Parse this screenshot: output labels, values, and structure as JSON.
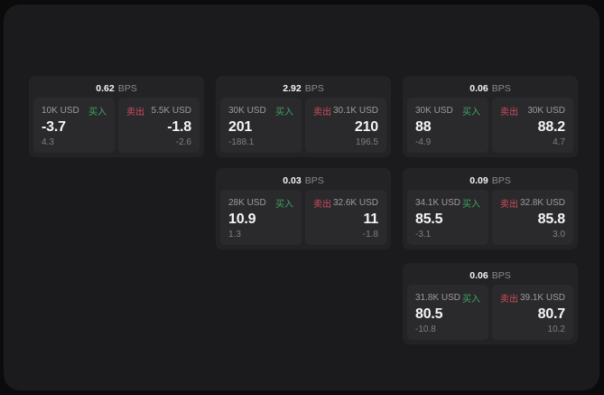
{
  "colors": {
    "page_background": "#0b0b0b",
    "surface_background": "#1b1b1d",
    "card_background": "#232325",
    "panel_background": "#2a2a2c",
    "buy_green": "#3fa463",
    "sell_red": "#d04a5e",
    "value_text": "#f5f5f5",
    "muted_text": "#8a8a8a"
  },
  "labels": {
    "buy": "买入",
    "sell": "卖出",
    "bps_unit": "BPS"
  },
  "cards": [
    {
      "bps": "0.62",
      "bps_unit": "BPS",
      "buy": {
        "amount": "10K USD",
        "label": "买入",
        "price": "-3.7",
        "sub": "4.3"
      },
      "sell": {
        "label": "卖出",
        "amount": "5.5K USD",
        "price": "-1.8",
        "sub": "-2.6"
      }
    },
    {
      "bps": "2.92",
      "bps_unit": "BPS",
      "buy": {
        "amount": "30K USD",
        "label": "买入",
        "price": "201",
        "sub": "-188.1"
      },
      "sell": {
        "label": "卖出",
        "amount": "30.1K USD",
        "price": "210",
        "sub": "196.5"
      }
    },
    {
      "bps": "0.06",
      "bps_unit": "BPS",
      "buy": {
        "amount": "30K USD",
        "label": "买入",
        "price": "88",
        "sub": "-4.9"
      },
      "sell": {
        "label": "卖出",
        "amount": "30K USD",
        "price": "88.2",
        "sub": "4.7"
      }
    },
    {
      "bps": "0.03",
      "bps_unit": "BPS",
      "buy": {
        "amount": "28K USD",
        "label": "买入",
        "price": "10.9",
        "sub": "1.3"
      },
      "sell": {
        "label": "卖出",
        "amount": "32.6K USD",
        "price": "11",
        "sub": "-1.8"
      }
    },
    {
      "bps": "0.09",
      "bps_unit": "BPS",
      "buy": {
        "amount": "34.1K USD",
        "label": "买入",
        "price": "85.5",
        "sub": "-3.1"
      },
      "sell": {
        "label": "卖出",
        "amount": "32.8K USD",
        "price": "85.8",
        "sub": "3.0"
      }
    },
    {
      "bps": "0.06",
      "bps_unit": "BPS",
      "buy": {
        "amount": "31.8K USD",
        "label": "买入",
        "price": "80.5",
        "sub": "-10.8"
      },
      "sell": {
        "label": "卖出",
        "amount": "39.1K USD",
        "price": "80.7",
        "sub": "10.2"
      }
    }
  ]
}
